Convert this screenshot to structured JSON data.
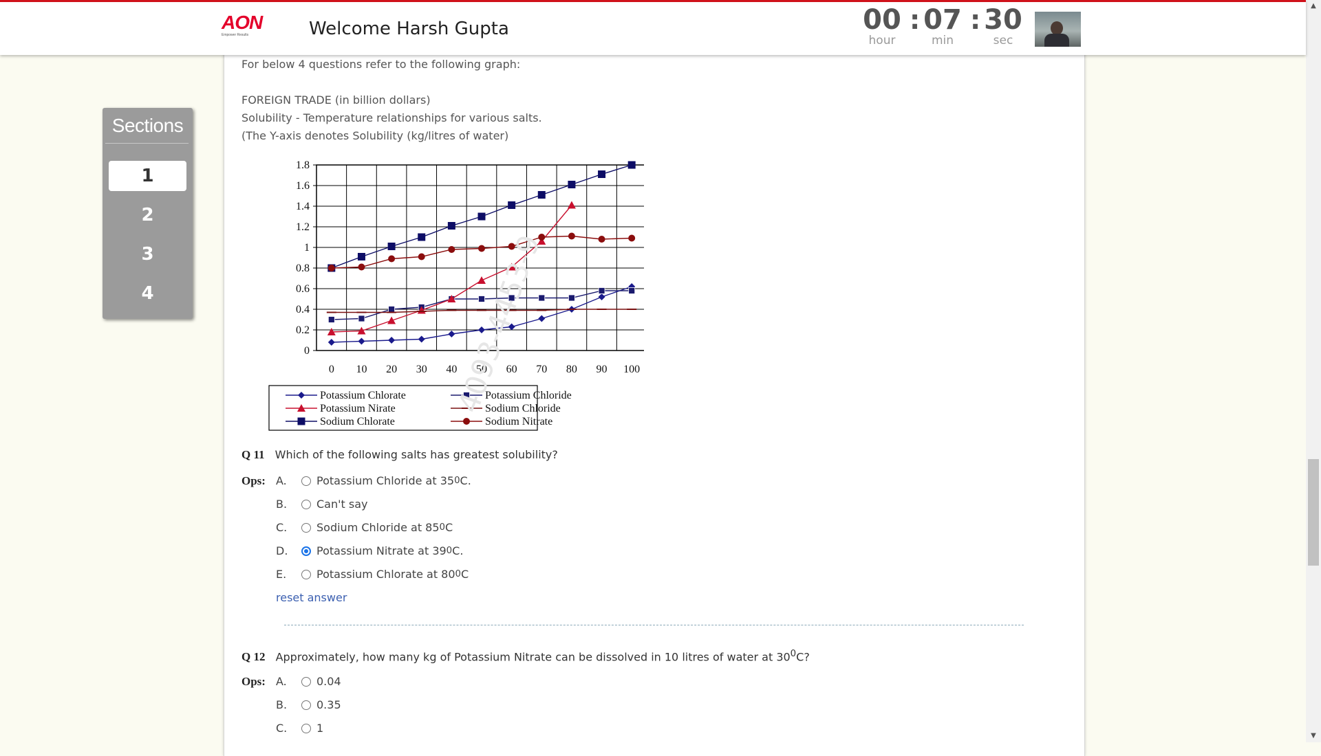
{
  "header": {
    "logo_text": "AON",
    "logo_tagline": "Empower Results",
    "welcome": "Welcome Harsh Gupta",
    "timer": {
      "hours": "00",
      "minutes": "07",
      "seconds": "30",
      "sep": ":",
      "hour_label": "hour",
      "min_label": "min",
      "sec_label": "sec"
    }
  },
  "sidebar": {
    "title": "Sections",
    "items": [
      {
        "label": "1",
        "active": true
      },
      {
        "label": "2",
        "active": false
      },
      {
        "label": "3",
        "active": false
      },
      {
        "label": "4",
        "active": false
      }
    ]
  },
  "passage": {
    "intro": "For below 4 questions refer to the following graph:",
    "line1": "FOREIGN TRADE (in billion dollars)",
    "line2": "Solubility - Temperature relationships for various salts.",
    "line3": "(The Y-axis denotes Solubility (kg/litres of water)"
  },
  "watermark": "4093-4453-9",
  "chart_data": {
    "type": "line",
    "x": [
      0,
      10,
      20,
      30,
      40,
      50,
      60,
      70,
      80,
      90,
      100
    ],
    "ylim": [
      0,
      1.8
    ],
    "yticks": [
      "0",
      "0.2",
      "0.4",
      "0.6",
      "0.8",
      "1",
      "1.2",
      "1.4",
      "1.6",
      "1.8"
    ],
    "xticks": [
      "0",
      "10",
      "20",
      "30",
      "40",
      "50",
      "60",
      "70",
      "80",
      "90",
      "100"
    ],
    "grid": true,
    "legend_position": "bottom",
    "series": [
      {
        "name": "Potassium Chlorate",
        "color": "#1a1a8c",
        "marker": "diamond",
        "values": [
          0.08,
          0.09,
          0.1,
          0.11,
          0.16,
          0.2,
          0.23,
          0.31,
          0.4,
          0.52,
          0.62
        ]
      },
      {
        "name": "Potassium Chloride",
        "color": "#1a1a6e",
        "marker": "square-small",
        "values": [
          0.3,
          0.31,
          0.4,
          0.42,
          0.5,
          0.5,
          0.51,
          0.51,
          0.51,
          0.58,
          0.58
        ]
      },
      {
        "name": "Potassium Nirate",
        "color": "#c8102e",
        "marker": "triangle",
        "values": [
          0.18,
          0.19,
          0.29,
          0.39,
          0.5,
          0.68,
          0.81,
          1.06,
          1.41,
          null,
          null
        ]
      },
      {
        "name": "Sodium Chloride",
        "color": "#7a1010",
        "marker": "dash",
        "values": [
          0.37,
          0.37,
          0.37,
          0.38,
          0.39,
          0.39,
          0.39,
          0.39,
          0.4,
          0.4,
          0.4
        ]
      },
      {
        "name": "Sodium Chlorate",
        "color": "#0d0d66",
        "marker": "square",
        "values": [
          0.8,
          0.91,
          1.01,
          1.1,
          1.21,
          1.3,
          1.41,
          1.51,
          1.61,
          1.71,
          1.8
        ]
      },
      {
        "name": "Sodium Nitrate",
        "color": "#8b0d0d",
        "marker": "circle",
        "values": [
          0.8,
          0.81,
          0.89,
          0.91,
          0.98,
          0.99,
          1.01,
          1.1,
          1.11,
          1.08,
          1.09
        ]
      }
    ]
  },
  "q11": {
    "number": "Q 11",
    "text": "Which of the following salts has greatest solubility?",
    "ops_label": "Ops:",
    "options": [
      {
        "letter": "A.",
        "text": "Potassium Chloride at 35",
        "sup": "0",
        "unit": "C.",
        "selected": false
      },
      {
        "letter": "B.",
        "text": "Can't say",
        "sup": "",
        "unit": "",
        "selected": false
      },
      {
        "letter": "C.",
        "text": "Sodium Chloride at 85",
        "sup": "0",
        "unit": "C",
        "selected": false
      },
      {
        "letter": "D.",
        "text": "Potassium Nitrate at 39",
        "sup": "0",
        "unit": "C.",
        "selected": true
      },
      {
        "letter": "E.",
        "text": "Potassium Chlorate at 80",
        "sup": "0",
        "unit": "C",
        "selected": false
      }
    ],
    "reset": "reset answer"
  },
  "q12": {
    "number": "Q 12",
    "text": "Approximately, how many kg of Potassium Nitrate can be dissolved in 10 litres of water at 30",
    "sup": "0",
    "unit": "C?",
    "ops_label": "Ops:",
    "options": [
      {
        "letter": "A.",
        "text": "0.04",
        "selected": false
      },
      {
        "letter": "B.",
        "text": "0.35",
        "selected": false
      },
      {
        "letter": "C.",
        "text": "1",
        "selected": false
      }
    ]
  }
}
